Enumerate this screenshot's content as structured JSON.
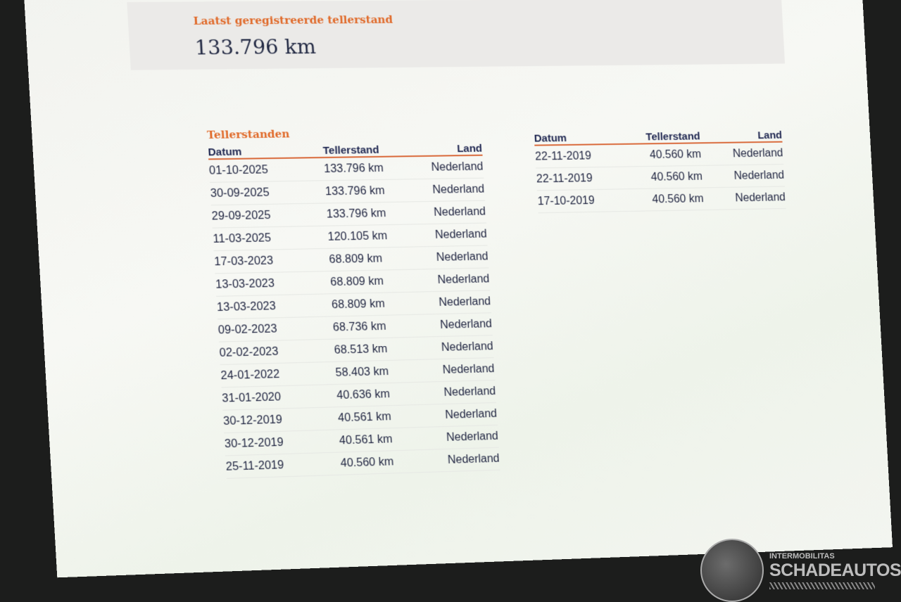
{
  "latest": {
    "label": "Laatst geregistreerde tellerstand",
    "value": "133.796 km"
  },
  "section_title": "Tellerstanden",
  "columns": {
    "date": "Datum",
    "odometer": "Tellerstand",
    "country": "Land"
  },
  "left_rows": [
    {
      "date": "01-10-2025",
      "km": "133.796 km",
      "country": "Nederland"
    },
    {
      "date": "30-09-2025",
      "km": "133.796 km",
      "country": "Nederland"
    },
    {
      "date": "29-09-2025",
      "km": "133.796 km",
      "country": "Nederland"
    },
    {
      "date": "11-03-2025",
      "km": "120.105 km",
      "country": "Nederland"
    },
    {
      "date": "17-03-2023",
      "km": "68.809 km",
      "country": "Nederland"
    },
    {
      "date": "13-03-2023",
      "km": "68.809 km",
      "country": "Nederland"
    },
    {
      "date": "13-03-2023",
      "km": "68.809 km",
      "country": "Nederland"
    },
    {
      "date": "09-02-2023",
      "km": "68.736 km",
      "country": "Nederland"
    },
    {
      "date": "02-02-2023",
      "km": "68.513 km",
      "country": "Nederland"
    },
    {
      "date": "24-01-2022",
      "km": "58.403 km",
      "country": "Nederland"
    },
    {
      "date": "31-01-2020",
      "km": "40.636 km",
      "country": "Nederland"
    },
    {
      "date": "30-12-2019",
      "km": "40.561 km",
      "country": "Nederland"
    },
    {
      "date": "30-12-2019",
      "km": "40.561 km",
      "country": "Nederland"
    },
    {
      "date": "25-11-2019",
      "km": "40.560 km",
      "country": "Nederland"
    }
  ],
  "right_rows": [
    {
      "date": "22-11-2019",
      "km": "40.560 km",
      "country": "Nederland"
    },
    {
      "date": "22-11-2019",
      "km": "40.560 km",
      "country": "Nederland"
    },
    {
      "date": "17-10-2019",
      "km": "40.560 km",
      "country": "Nederland"
    }
  ],
  "watermark": {
    "small": "INTERMOBILITAS",
    "big": "SCHADEAUTOS.NL"
  },
  "colors": {
    "accent": "#e06a2a",
    "text": "#1f2440"
  }
}
